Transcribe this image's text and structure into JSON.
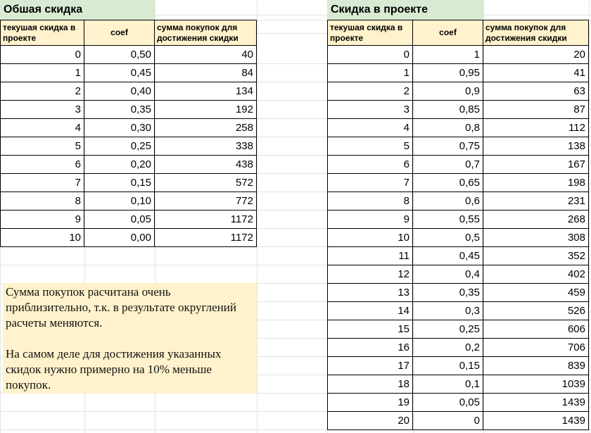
{
  "left": {
    "title": "Обшая скидка",
    "headers": [
      "текушая скидка в проекте",
      "coef",
      "сумма покупок для достижения скидки"
    ],
    "rows": [
      [
        "0",
        "0,50",
        "40"
      ],
      [
        "1",
        "0,45",
        "84"
      ],
      [
        "2",
        "0,40",
        "134"
      ],
      [
        "3",
        "0,35",
        "192"
      ],
      [
        "4",
        "0,30",
        "258"
      ],
      [
        "5",
        "0,25",
        "338"
      ],
      [
        "6",
        "0,20",
        "438"
      ],
      [
        "7",
        "0,15",
        "572"
      ],
      [
        "8",
        "0,10",
        "772"
      ],
      [
        "9",
        "0,05",
        "1172"
      ],
      [
        "10",
        "0,00",
        "1172"
      ]
    ]
  },
  "right": {
    "title": "Скидка в проекте",
    "headers": [
      "текушая скидка в проекте",
      "coef",
      "сумма покупок для достижения скидки"
    ],
    "rows": [
      [
        "0",
        "1",
        "20"
      ],
      [
        "1",
        "0,95",
        "41"
      ],
      [
        "2",
        "0,9",
        "63"
      ],
      [
        "3",
        "0,85",
        "87"
      ],
      [
        "4",
        "0,8",
        "112"
      ],
      [
        "5",
        "0,75",
        "138"
      ],
      [
        "6",
        "0,7",
        "167"
      ],
      [
        "7",
        "0,65",
        "198"
      ],
      [
        "8",
        "0,6",
        "231"
      ],
      [
        "9",
        "0,55",
        "268"
      ],
      [
        "10",
        "0,5",
        "308"
      ],
      [
        "11",
        "0,45",
        "352"
      ],
      [
        "12",
        "0,4",
        "402"
      ],
      [
        "13",
        "0,35",
        "459"
      ],
      [
        "14",
        "0,3",
        "526"
      ],
      [
        "15",
        "0,25",
        "606"
      ],
      [
        "16",
        "0,2",
        "706"
      ],
      [
        "17",
        "0,15",
        "839"
      ],
      [
        "18",
        "0,1",
        "1039"
      ],
      [
        "19",
        "0,05",
        "1439"
      ],
      [
        "20",
        "0",
        "1439"
      ]
    ]
  },
  "note": {
    "p1": "Сумма покупок расчитана очень приблизительно, т.к. в результате округлений расчеты меняются.",
    "p2": "На самом деле для достижения указанных скидок нужно примерно на 10% меньше покупок."
  }
}
